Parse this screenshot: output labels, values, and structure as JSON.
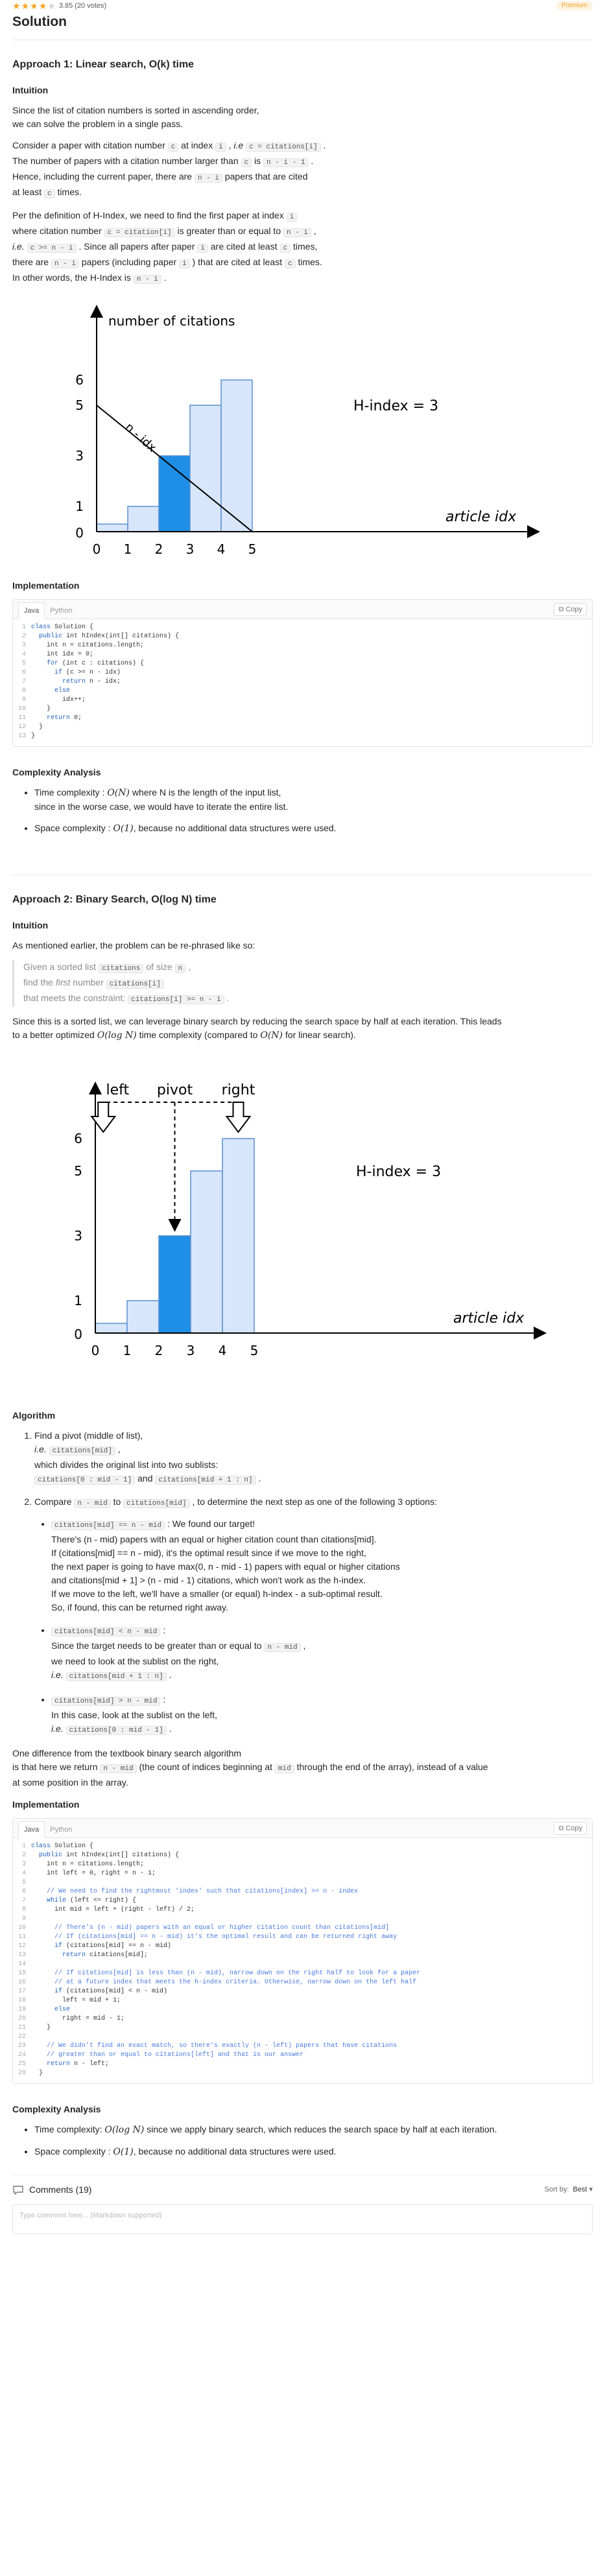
{
  "header": {
    "rating_text": "3.85 (20 votes)",
    "stars": 4,
    "premium_label": "Premium",
    "title": "Solution"
  },
  "approach1": {
    "title": "Approach 1: Linear search, O(k) time",
    "intuition_heading": "Intuition",
    "p1_l1": "Since the list of citation numbers is sorted in ascending order,",
    "p1_l2": "we can solve the problem in a single pass.",
    "p2": {
      "t1": "Consider a paper with citation number ",
      "c1": "c",
      "t2": " at index ",
      "c2": "i",
      "t3": " , ",
      "ie": "i.e",
      "t4": " ",
      "c3": "c = citations[i]",
      "t5": " .",
      "t6": "The number of papers with a citation number larger than ",
      "c4": "c",
      "t7": " is ",
      "c5": "n - i - 1",
      "t8": " .",
      "t9": "Hence, including the current paper, there are ",
      "c6": "n - i",
      "t10": " papers that are cited",
      "t11": "at least ",
      "c7": "c",
      "t12": " times."
    },
    "p3": {
      "t1": "Per the definition of H-Index, we need to find the first paper at index ",
      "c1": "i",
      "t2": "where citation number ",
      "c2": "c = citation[i]",
      "t3": " is greater than or equal to ",
      "c3": "n - i",
      "t4": " ,",
      "ie": "i.e.",
      "t5": " ",
      "c4": "c >= n - i",
      "t6": " . Since all papers after paper ",
      "c5": "i",
      "t7": " are cited at least ",
      "c6": "c",
      "t8": " times,",
      "t9": "there are ",
      "c7": "n - i",
      "t10": " papers (including paper ",
      "c8": "i",
      "t11": " ) that are cited at least ",
      "c9": "c",
      "t12": " times.",
      "t13": "In other words, the H-Index is ",
      "c10": "n - i",
      "t14": " ."
    },
    "implementation_heading": "Implementation",
    "complexity_heading": "Complexity Analysis",
    "complexity": {
      "time_label": "Time complexity : ",
      "time_math": "O(N)",
      "time_rest": " where N is the length of the input list,",
      "time_l2": "since in the worse case, we would have to iterate the entire list.",
      "space_label": "Space complexity : ",
      "space_math": "O(1)",
      "space_rest": ", because no additional data structures were used."
    }
  },
  "chart1": {
    "chart_data": {
      "type": "bar",
      "categories": [
        "0",
        "1",
        "2",
        "3",
        "4"
      ],
      "values": [
        0.3,
        1,
        3,
        5,
        6
      ],
      "highlight_index": 2,
      "ylabel": "number of citations",
      "xlabel": "article idx",
      "yticks": [
        "0",
        "1",
        "3",
        "5",
        "6"
      ],
      "xticks": [
        "0",
        "1",
        "2",
        "3",
        "4",
        "5"
      ],
      "annotations": [
        "H-index = 3",
        "n - idx"
      ]
    }
  },
  "code_tabs": {
    "java": "Java",
    "python": "Python",
    "copy": "Copy"
  },
  "code1": {
    "line_numbers": [
      "1",
      "2",
      "3",
      "4",
      "5",
      "6",
      "7",
      "8",
      "9",
      "10",
      "11",
      "12",
      "13"
    ],
    "lines": [
      "class Solution {",
      "  public int hIndex(int[] citations) {",
      "    int n = citations.length;",
      "    int idx = 0;",
      "    for (int c : citations) {",
      "      if (c >= n - idx)",
      "        return n - idx;",
      "      else",
      "        idx++;",
      "    }",
      "    return 0;",
      "  }",
      "}"
    ]
  },
  "approach2": {
    "title": "Approach 2: Binary Search, O(log N) time",
    "intuition_heading": "Intuition",
    "p1": "As mentioned earlier, the problem can be re-phrased like so:",
    "bq": {
      "l1a": "Given a sorted list ",
      "l1c": "citations",
      "l1b": " of size ",
      "l1d": "n",
      "l1e": " ,",
      "l2a": "find the ",
      "l2em": "first",
      "l2b": " number ",
      "l2c": "citations[i]",
      "l3a": "that meets the constraint: ",
      "l3c": "citations[i] >= n - i",
      "l3b": " ."
    },
    "p2_a": "Since this is a sorted list, we can leverage binary search by reducing the search space by half at each iteration. This leads",
    "p2_b": "to a better optimized ",
    "p2_m1": "O(log N)",
    "p2_c": " time complexity (compared to ",
    "p2_m2": "O(N)",
    "p2_d": " for linear search).",
    "algorithm_heading": "Algorithm",
    "step1": {
      "t1": "Find a pivot (middle of list),",
      "ie": "i.e.",
      "c1": "citations[mid]",
      "t2": " ,",
      "t3": "which divides the original list into two sublists:",
      "c2": "citations[0 : mid - 1]",
      "t4": " and ",
      "c3": "citations[mid + 1 : n]",
      "t5": " ."
    },
    "step2": {
      "t1": "Compare ",
      "c1": "n - mid",
      "t2": " to ",
      "c2": "citations[mid]",
      "t3": " , to determine the next step as one of the following 3 options:",
      "opt1": {
        "c": "citations[mid] == n - mid",
        "t1": " : We found our target!",
        "l2": "There's (n - mid) papers with an equal or higher citation count than citations[mid].",
        "l3": "If (citations[mid] == n - mid), it's the optimal result since if we move to the right,",
        "l4": "the next paper is going to have max(0, n - mid - 1) papers with equal or higher citations",
        "l5": "and citations[mid + 1] > (n - mid - 1) citations, which won't work as the h-index.",
        "l6": "If we move to the left, we'll have a smaller (or equal) h-index - a sub-optimal result.",
        "l7": "So, if found, this can be returned right away."
      },
      "opt2": {
        "c": "citations[mid] < n - mid",
        "t1": " :",
        "l2a": "Since the target needs to be greater than or equal to ",
        "l2c": "n - mid",
        "l2b": " ,",
        "l3": "we need to look at the sublist on the right,",
        "ie": "i.e.",
        "l4c": "citations[mid + 1 : n]",
        "l4b": " ."
      },
      "opt3": {
        "c": "citations[mid] > n - mid",
        "t1": " :",
        "l2": "In this case, look at the sublist on the left,",
        "ie": "i.e.",
        "l3c": "citations[0 : mid - 1]",
        "l3b": " ."
      }
    },
    "diff_l1": "One difference from the textbook binary search algorithm",
    "diff_l2a": "is that here we return ",
    "diff_c1": "n - mid",
    "diff_l2b": " (the count of indices beginning at ",
    "diff_c2": "mid",
    "diff_l2c": " through the end of the array), instead of a value",
    "diff_l3": "at some position in the array.",
    "implementation_heading": "Implementation",
    "complexity_heading": "Complexity Analysis",
    "complexity": {
      "time_label": "Time complexity: ",
      "time_math": "O(log N)",
      "time_rest": " since we apply binary search, which reduces the search space by half at each iteration.",
      "space_label": "Space complexity : ",
      "space_math": "O(1)",
      "space_rest": ", because no additional data structures were used."
    }
  },
  "chart2": {
    "chart_data": {
      "type": "bar",
      "categories": [
        "0",
        "1",
        "2",
        "3",
        "4"
      ],
      "values": [
        0.3,
        1,
        3,
        5,
        6
      ],
      "highlight_index": 2,
      "xlabel": "article idx",
      "yticks": [
        "0",
        "1",
        "3",
        "5",
        "6"
      ],
      "xticks": [
        "0",
        "1",
        "2",
        "3",
        "4",
        "5"
      ],
      "annotations": [
        "H-index = 3",
        "left",
        "pivot",
        "right"
      ]
    }
  },
  "code2": {
    "line_numbers": [
      "1",
      "2",
      "3",
      "4",
      "5",
      "6",
      "7",
      "8",
      "9",
      "10",
      "11",
      "12",
      "13",
      "14",
      "15",
      "16",
      "17",
      "18",
      "19",
      "20",
      "21",
      "22",
      "23",
      "24",
      "25",
      "26"
    ],
    "lines": [
      "class Solution {",
      "  public int hIndex(int[] citations) {",
      "    int n = citations.length;",
      "    int left = 0, right = n - 1;",
      "",
      "    // We need to find the rightmost 'index' such that citations[index] >= n - index",
      "    while (left <= right) {",
      "      int mid = left + (right - left) / 2;",
      "",
      "      // There's (n - mid) papers with an equal or higher citation count than citations[mid]",
      "      // If (citations[mid] == n - mid) it's the optimal result and can be returned right away",
      "      if (citations[mid] == n - mid)",
      "        return citations[mid];",
      "",
      "      // If citations[mid] is less than (n - mid), narrow down on the right half to look for a paper",
      "      // at a future index that meets the h-index criteria. Otherwise, narrow down on the left half",
      "      if (citations[mid] < n - mid)",
      "        left = mid + 1;",
      "      else",
      "        right = mid - 1;",
      "    }",
      "",
      "    // We didn't find an exact match, so there's exactly (n - left) papers that have citations",
      "    // greater than or equal to citations[left] and that is our answer",
      "    return n - left;",
      "  }"
    ]
  },
  "comments": {
    "label": "Comments (19)",
    "sort_label": "Sort by:",
    "sort_value": "Best",
    "input_placeholder": "Type comment here... (Markdown supported)"
  },
  "colors": {
    "bar_fill": "#d7e6fa",
    "bar_stroke": "#5a8fd0",
    "bar_highlight": "#1f8ee6",
    "accent_star": "#f5a623"
  }
}
